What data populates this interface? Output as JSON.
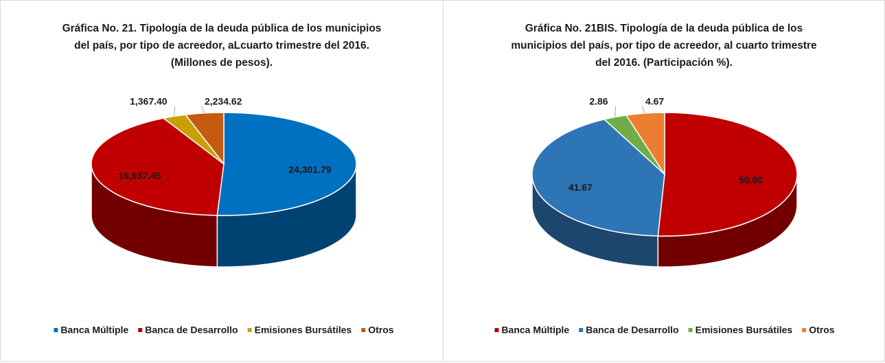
{
  "chart_data": [
    {
      "type": "pie3d",
      "title": "Gráfica No. 21. Tipología de la deuda pública de los municipios del país, por tipo de acreedor, aLcuarto trimestre del 2016. (Millones de pesos).",
      "categories": [
        "Banca Múltiple",
        "Banca de Desarrollo",
        "Emisiones Bursátiles",
        "Otros"
      ],
      "values": [
        24301.79,
        19937.45,
        1367.4,
        2234.62
      ],
      "value_labels": [
        "24,301.79",
        "19,937.45",
        "1,367.40",
        "2,234.62"
      ],
      "colors": [
        "#0070c0",
        "#c00000",
        "#c9a000",
        "#c55a11"
      ],
      "legend": "bottom"
    },
    {
      "type": "pie3d",
      "title": "Gráfica No. 21BIS. Tipología de la deuda pública de los municipios del país, por tipo de acreedor, al cuarto trimestre del 2016. (Participación %).",
      "categories": [
        "Banca Múltiple",
        "Banca de Desarrollo",
        "Emisiones Bursátiles",
        "Otros"
      ],
      "values": [
        50.8,
        41.67,
        2.86,
        4.67
      ],
      "value_labels": [
        "50.80",
        "41.67",
        "2.86",
        "4.67"
      ],
      "colors": [
        "#c00000",
        "#2e75b6",
        "#70ad47",
        "#ed7d31"
      ],
      "legend": "bottom"
    }
  ]
}
